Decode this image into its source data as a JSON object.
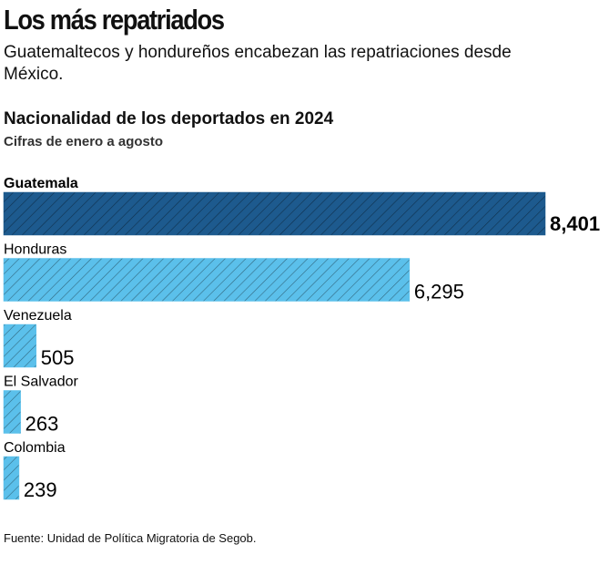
{
  "chart_data": {
    "type": "bar",
    "orientation": "horizontal",
    "title": "Los más repatriados",
    "subtitle": "Guatemaltecos y hondureños encabezan las repatriaciones desde México.",
    "chart_title": "Nacionalidad de los deportados en 2024",
    "chart_subtitle": "Cifras de enero a agosto",
    "categories": [
      "Guatemala",
      "Honduras",
      "Venezuela",
      "El Salvador",
      "Colombia"
    ],
    "values": [
      8401,
      6295,
      505,
      263,
      239
    ],
    "value_labels": [
      "8,401",
      "6,295",
      "505",
      "263",
      "239"
    ],
    "colors": [
      "#1d5a8e",
      "#5bc0eb",
      "#5bc0eb",
      "#5bc0eb",
      "#5bc0eb"
    ],
    "source": "Fuente: Unidad de Política Migratoria de Segob."
  }
}
